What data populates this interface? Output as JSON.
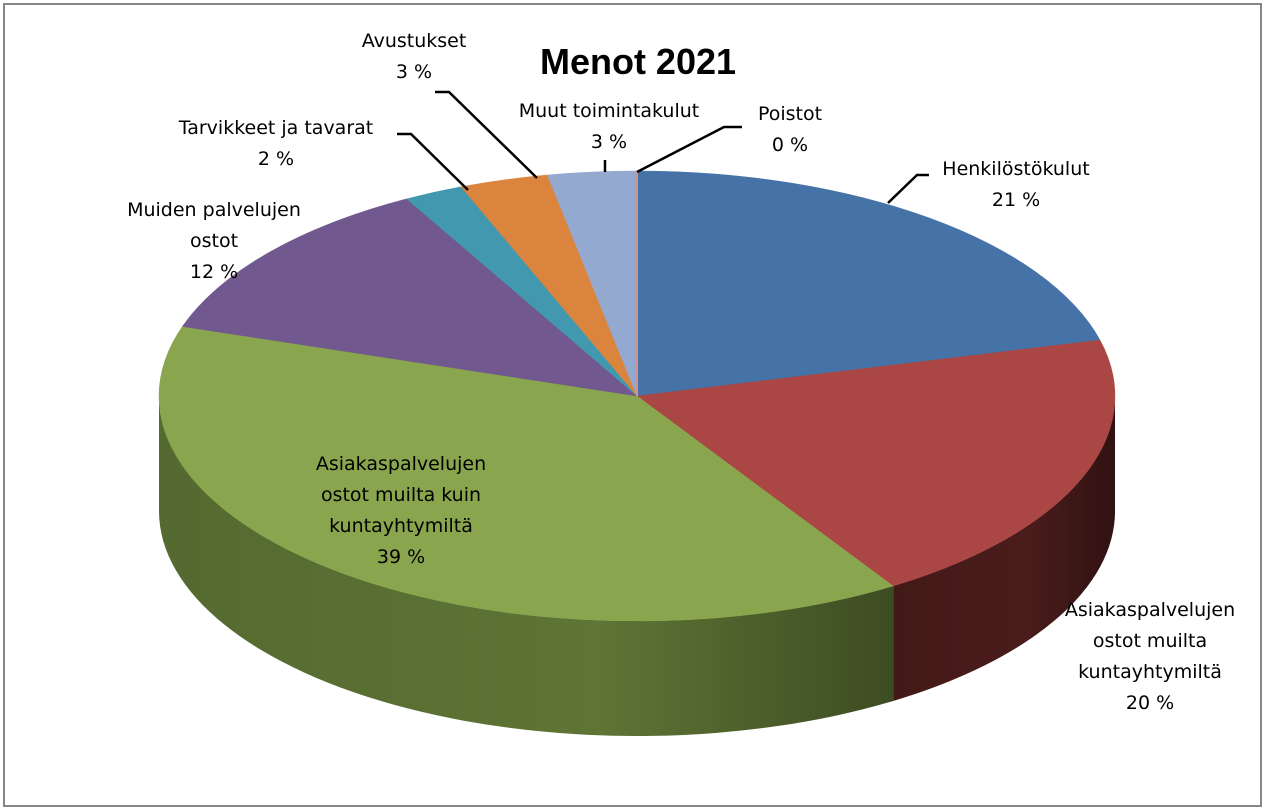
{
  "chart_data": {
    "type": "pie",
    "style": "3d",
    "title": "Menot 2021",
    "slices": [
      {
        "name": "Henkilöstökulut",
        "label_lines": [
          "Henkilöstökulut"
        ],
        "value": 21,
        "value_label": "21 %",
        "color": "#4572A7",
        "side_color": "#2B4A73"
      },
      {
        "name": "Asiakaspalvelujen ostot muilta kuntayhtymiltä",
        "label_lines": [
          "Asiakaspalvelujen",
          "ostot muilta",
          "kuntayhtymiltä"
        ],
        "value": 20,
        "value_label": "20 %",
        "color": "#AA4643",
        "side_color": "#4A1C1B"
      },
      {
        "name": "Asiakaspalvelujen ostot muilta kuin kuntayhtymiltä",
        "label_lines": [
          "Asiakaspalvelujen",
          "ostot muilta kuin",
          "kuntayhtymiltä"
        ],
        "value": 39,
        "value_label": "39 %",
        "color": "#89A54E",
        "side_color": "#5E7535"
      },
      {
        "name": "Muiden palvelujen ostot",
        "label_lines": [
          "Muiden palvelujen",
          "ostot"
        ],
        "value": 12,
        "value_label": "12 %",
        "color": "#71588F",
        "side_color": "#4A3A5E"
      },
      {
        "name": "Tarvikkeet ja tavarat",
        "label_lines": [
          "Tarvikkeet ja tavarat"
        ],
        "value": 2,
        "value_label": "2 %",
        "color": "#4198AF",
        "side_color": "#2A6372"
      },
      {
        "name": "Avustukset",
        "label_lines": [
          "Avustukset"
        ],
        "value": 3,
        "value_label": "3 %",
        "color": "#DB843D",
        "side_color": "#8F5628"
      },
      {
        "name": "Muut toimintakulut",
        "label_lines": [
          "Muut toimintakulut"
        ],
        "value": 3,
        "value_label": "3 %",
        "color": "#93A9CF",
        "side_color": "#606E87"
      },
      {
        "name": "Poistot",
        "label_lines": [
          "Poistot"
        ],
        "value": 0,
        "value_label": "0 %",
        "color": "#D19392",
        "side_color": "#8A5F5E"
      }
    ],
    "legend": "none"
  }
}
